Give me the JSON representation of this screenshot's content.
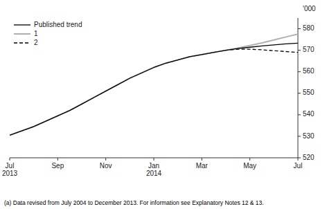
{
  "chart_data": {
    "type": "line",
    "y_label": "'000",
    "annotations": [
      "(a) Data revised from July 2004 to December 2013. For information see Explanatory Notes 12 & 13."
    ],
    "categories": [
      "Jul\n2013",
      null,
      null,
      null,
      "Sep",
      null,
      null,
      null,
      "Nov",
      null,
      null,
      null,
      "Jan\n2014",
      null,
      null,
      null,
      "Mar",
      null,
      null,
      null,
      "May",
      null,
      null,
      null,
      "Jul"
    ],
    "series": [
      {
        "name": "Published trend",
        "color": "#000000",
        "values": [
          530.5,
          532.5,
          534.5,
          537.0,
          539.5,
          542.0,
          545.0,
          548.0,
          551.0,
          554.0,
          557.0,
          559.5,
          562.0,
          564.0,
          565.5,
          567.0,
          568.0,
          569.0,
          570.0,
          570.8,
          571.4,
          572.0,
          572.5,
          573.0,
          573.3
        ]
      },
      {
        "name": "1",
        "color": "#b0b0b0",
        "values": [
          530.5,
          532.5,
          534.5,
          537.0,
          539.5,
          542.0,
          545.0,
          548.0,
          551.0,
          554.0,
          557.0,
          559.5,
          562.0,
          564.0,
          565.5,
          567.0,
          568.0,
          569.0,
          570.0,
          571.0,
          572.2,
          573.4,
          574.8,
          576.2,
          577.5
        ]
      },
      {
        "name": "2",
        "color": "#000000",
        "line_style": "dashed",
        "values": [
          530.5,
          532.5,
          534.5,
          537.0,
          539.5,
          542.0,
          545.0,
          548.0,
          551.0,
          554.0,
          557.0,
          559.5,
          562.0,
          564.0,
          565.5,
          567.0,
          568.0,
          569.0,
          570.0,
          570.5,
          570.5,
          570.2,
          569.8,
          569.4,
          569.0
        ]
      }
    ],
    "ylim": [
      520,
      585
    ],
    "yticks": [
      520,
      530,
      540,
      550,
      560,
      570,
      580
    ],
    "grid": false,
    "legend": "upper left"
  }
}
